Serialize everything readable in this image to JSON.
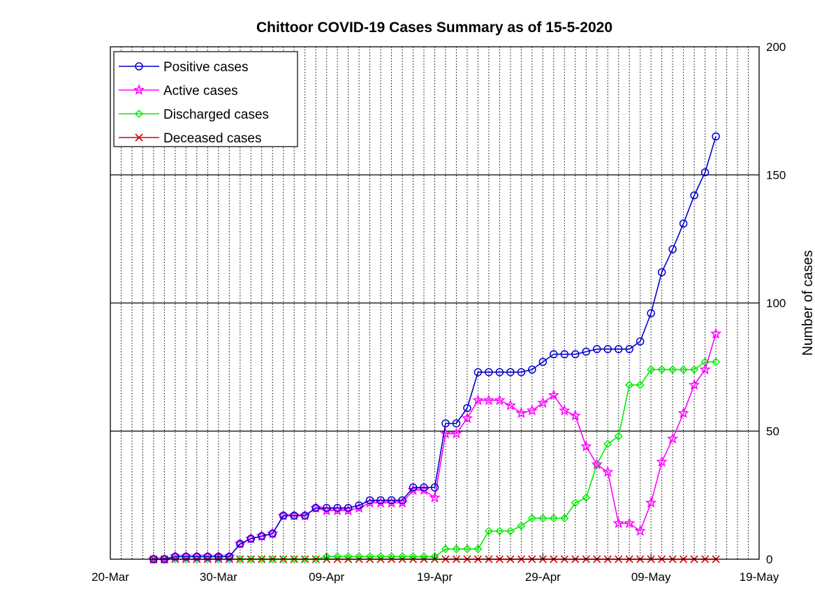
{
  "chart_data": {
    "type": "line",
    "title": "Chittoor COVID-19 Cases Summary as of 15-5-2020",
    "ylabel": "Number of cases",
    "ylim": [
      0,
      200
    ],
    "yticks": [
      "0",
      "50",
      "100",
      "150",
      "200"
    ],
    "xtick_labels": [
      "20-Mar",
      "30-Mar",
      "09-Apr",
      "19-Apr",
      "29-Apr",
      "09-May",
      "19-May"
    ],
    "xlim": [
      "2020-03-20",
      "2020-05-19"
    ],
    "y_axis_position": "right",
    "grid": "vertical dotted daily, horizontal solid at y ticks",
    "legend_position": "top-left",
    "dates": [
      "2020-03-24",
      "2020-03-25",
      "2020-03-26",
      "2020-03-27",
      "2020-03-28",
      "2020-03-29",
      "2020-03-30",
      "2020-03-31",
      "2020-04-01",
      "2020-04-02",
      "2020-04-03",
      "2020-04-04",
      "2020-04-05",
      "2020-04-06",
      "2020-04-07",
      "2020-04-08",
      "2020-04-09",
      "2020-04-10",
      "2020-04-11",
      "2020-04-12",
      "2020-04-13",
      "2020-04-14",
      "2020-04-15",
      "2020-04-16",
      "2020-04-17",
      "2020-04-18",
      "2020-04-19",
      "2020-04-20",
      "2020-04-21",
      "2020-04-22",
      "2020-04-23",
      "2020-04-24",
      "2020-04-25",
      "2020-04-26",
      "2020-04-27",
      "2020-04-28",
      "2020-04-29",
      "2020-04-30",
      "2020-05-01",
      "2020-05-02",
      "2020-05-03",
      "2020-05-04",
      "2020-05-05",
      "2020-05-06",
      "2020-05-07",
      "2020-05-08",
      "2020-05-09",
      "2020-05-10",
      "2020-05-11",
      "2020-05-12",
      "2020-05-13",
      "2020-05-14",
      "2020-05-15"
    ],
    "series": [
      {
        "name": "Positive cases",
        "color": "#0000cc",
        "marker": "circle",
        "values": [
          0,
          0,
          1,
          1,
          1,
          1,
          1,
          1,
          6,
          8,
          9,
          10,
          17,
          17,
          17,
          20,
          20,
          20,
          20,
          21,
          23,
          23,
          23,
          23,
          28,
          28,
          28,
          53,
          53,
          59,
          73,
          73,
          73,
          73,
          73,
          74,
          77,
          80,
          80,
          80,
          81,
          82,
          82,
          82,
          82,
          85,
          96,
          112,
          121,
          131,
          142,
          151,
          165
        ]
      },
      {
        "name": "Active cases",
        "color": "#ff00ff",
        "marker": "star",
        "values": [
          0,
          0,
          1,
          1,
          1,
          1,
          1,
          1,
          6,
          8,
          9,
          10,
          17,
          17,
          17,
          20,
          19,
          19,
          19,
          20,
          22,
          22,
          22,
          22,
          27,
          27,
          24,
          49,
          49,
          55,
          62,
          62,
          62,
          60,
          57,
          58,
          61,
          64,
          58,
          56,
          44,
          37,
          34,
          14,
          14,
          11,
          22,
          38,
          47,
          57,
          68,
          74,
          88
        ]
      },
      {
        "name": "Discharged cases",
        "color": "#00ee00",
        "marker": "diamond",
        "values": [
          0,
          0,
          0,
          0,
          0,
          0,
          0,
          0,
          0,
          0,
          0,
          0,
          0,
          0,
          0,
          0,
          1,
          1,
          1,
          1,
          1,
          1,
          1,
          1,
          1,
          1,
          1,
          4,
          4,
          4,
          4,
          11,
          11,
          11,
          13,
          16,
          16,
          16,
          16,
          22,
          24,
          37,
          45,
          48,
          68,
          68,
          74,
          74,
          74,
          74,
          74,
          77,
          77
        ]
      },
      {
        "name": "Deceased cases",
        "color": "#dd0000",
        "marker": "cross",
        "values": [
          0,
          0,
          0,
          0,
          0,
          0,
          0,
          0,
          0,
          0,
          0,
          0,
          0,
          0,
          0,
          0,
          0,
          0,
          0,
          0,
          0,
          0,
          0,
          0,
          0,
          0,
          0,
          0,
          0,
          0,
          0,
          0,
          0,
          0,
          0,
          0,
          0,
          0,
          0,
          0,
          0,
          0,
          0,
          0,
          0,
          0,
          0,
          0,
          0,
          0,
          0,
          0,
          0
        ]
      }
    ]
  }
}
